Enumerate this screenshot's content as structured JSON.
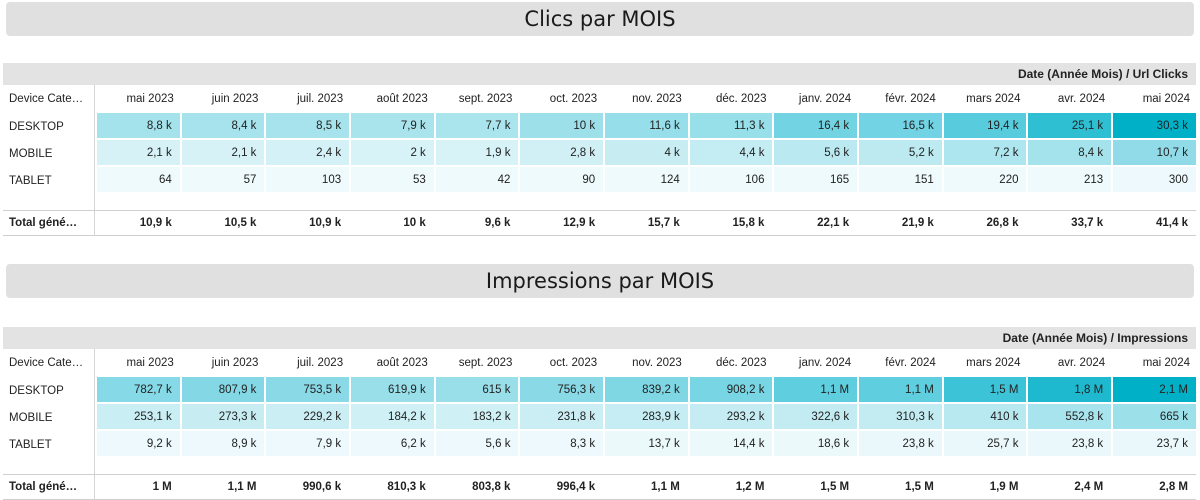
{
  "section1": {
    "title": "Clics par MOIS",
    "header_label": "Date (Année Mois) / Url Clicks",
    "col_header": "Device Categ…",
    "months": [
      "mai 2023",
      "juin 2023",
      "juil. 2023",
      "août 2023",
      "sept. 2023",
      "oct. 2023",
      "nov. 2023",
      "déc. 2023",
      "janv. 2024",
      "févr. 2024",
      "mars 2024",
      "avr. 2024",
      "mai 2024"
    ],
    "rows": [
      {
        "label": "DESKTOP",
        "values": [
          "8,8 k",
          "8,4 k",
          "8,5 k",
          "7,9 k",
          "7,7 k",
          "10 k",
          "11,6 k",
          "11,3 k",
          "16,4 k",
          "16,5 k",
          "19,4 k",
          "25,1 k",
          "30,3 k"
        ],
        "colors": [
          "#a5e3ec",
          "#a6e3ec",
          "#a6e3ec",
          "#a9e4ed",
          "#aae5ed",
          "#9de0ea",
          "#95deea",
          "#97dfe9",
          "#72d4e3",
          "#71d3e3",
          "#58ccdd",
          "#2fbfd3",
          "#00b0c6"
        ]
      },
      {
        "label": "MOBILE",
        "values": [
          "2,1 k",
          "2,1 k",
          "2,4 k",
          "2 k",
          "1,9 k",
          "2,8 k",
          "4 k",
          "4,4 k",
          "5,6 k",
          "5,2 k",
          "7,2 k",
          "8,4 k",
          "10,7 k"
        ],
        "colors": [
          "#d6f2f7",
          "#d6f2f7",
          "#d3f1f6",
          "#d7f3f7",
          "#d7f3f7",
          "#d1f0f5",
          "#c7edf3",
          "#c4ecf3",
          "#bbe9f1",
          "#bdeaf1",
          "#ade6ee",
          "#a5e3ec",
          "#91dbe8"
        ]
      },
      {
        "label": "TABLET",
        "values": [
          "64",
          "57",
          "103",
          "53",
          "42",
          "90",
          "124",
          "106",
          "165",
          "151",
          "220",
          "213",
          "300"
        ],
        "colors": [
          "#eefafc",
          "#eefafc",
          "#eefafc",
          "#eefafc",
          "#eefafc",
          "#eefafc",
          "#eefafc",
          "#eefafc",
          "#eefafc",
          "#eefafc",
          "#eefafc",
          "#eefafc",
          "#edf9fc"
        ]
      }
    ],
    "total": {
      "label": "Total géné…",
      "values": [
        "10,9 k",
        "10,5 k",
        "10,9 k",
        "10 k",
        "9,6 k",
        "12,9 k",
        "15,7 k",
        "15,8 k",
        "22,1 k",
        "21,9 k",
        "26,8 k",
        "33,7 k",
        "41,4 k"
      ]
    }
  },
  "section2": {
    "title": "Impressions par MOIS",
    "header_label": "Date (Année Mois) / Impressions",
    "col_header": "Device Categ…",
    "months": [
      "mai 2023",
      "juin 2023",
      "juil. 2023",
      "août 2023",
      "sept. 2023",
      "oct. 2023",
      "nov. 2023",
      "déc. 2023",
      "janv. 2024",
      "févr. 2024",
      "mars 2024",
      "avr. 2024",
      "mai 2024"
    ],
    "rows": [
      {
        "label": "DESKTOP",
        "values": [
          "782,7 k",
          "807,9 k",
          "753,5 k",
          "619,9 k",
          "615 k",
          "756,3 k",
          "839,2 k",
          "908,2 k",
          "1,1 M",
          "1,1 M",
          "1,5 M",
          "1,8 M",
          "2,1 M"
        ],
        "colors": [
          "#86d9e6",
          "#84d8e5",
          "#89d9e6",
          "#98dfe9",
          "#98dfe9",
          "#89d9e6",
          "#80d7e4",
          "#78d5e3",
          "#5fcedf",
          "#5fcedf",
          "#3dc3d7",
          "#1fb9cf",
          "#00b0c6"
        ]
      },
      {
        "label": "MOBILE",
        "values": [
          "253,1 k",
          "273,3 k",
          "229,2 k",
          "184,2 k",
          "183,2 k",
          "231,8 k",
          "283,9 k",
          "293,2 k",
          "322,6 k",
          "310,3 k",
          "410 k",
          "552,8 k",
          "665 k"
        ],
        "colors": [
          "#c9eef4",
          "#c7edf3",
          "#cbeef4",
          "#cff0f5",
          "#cff0f5",
          "#cbeef4",
          "#c6edf3",
          "#c5ecf3",
          "#c2ebf2",
          "#c3ecf2",
          "#b8e8f0",
          "#a8e4ed",
          "#9ce0ea"
        ]
      },
      {
        "label": "TABLET",
        "values": [
          "9,2 k",
          "8,9 k",
          "7,9 k",
          "6,2 k",
          "5,6 k",
          "8,3 k",
          "13,7 k",
          "14,4 k",
          "18,6 k",
          "23,8 k",
          "25,7 k",
          "23,8 k",
          "23,7 k"
        ],
        "colors": [
          "#edf9fc",
          "#edf9fc",
          "#edf9fc",
          "#edf9fc",
          "#edf9fc",
          "#edf9fc",
          "#ecf9fb",
          "#ecf9fb",
          "#ecf9fb",
          "#ebf8fb",
          "#ebf8fb",
          "#ebf8fb",
          "#ebf8fb"
        ]
      }
    ],
    "total": {
      "label": "Total géné…",
      "values": [
        "1 M",
        "1,1 M",
        "990,6 k",
        "810,3 k",
        "803,8 k",
        "996,4 k",
        "1,1 M",
        "1,2 M",
        "1,5 M",
        "1,5 M",
        "1,9 M",
        "2,4 M",
        "2,8 M"
      ]
    }
  }
}
